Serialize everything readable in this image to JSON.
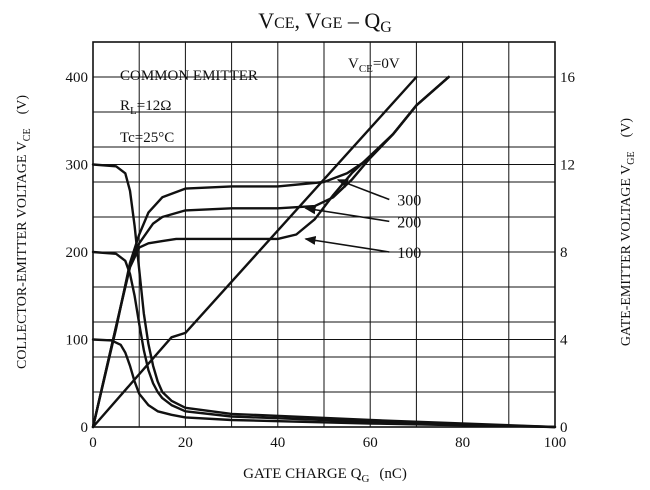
{
  "chart_data": {
    "type": "line",
    "title": {
      "main": "V",
      "sub1": "CE",
      "mid": ", V",
      "sub2": "GE",
      "dash": " – Q",
      "sub3": "G"
    },
    "xlabel": {
      "main": "GATE CHARGE  Q",
      "sub": "G",
      "unit": "(nC)"
    },
    "ylabel_left": {
      "main": "COLLECTOR-EMITTER VOLTAGE  V",
      "sub": "CE",
      "unit": "(V)"
    },
    "ylabel_right": {
      "main": "GATE-EMITTER VOLTAGE  V",
      "sub": "GE",
      "unit": "(V)"
    },
    "xlim": [
      0,
      100
    ],
    "ylim_left": [
      0,
      440
    ],
    "ylim_right": [
      0,
      17.6
    ],
    "x_ticks": [
      "0",
      "20",
      "40",
      "60",
      "80",
      "100"
    ],
    "y_left_ticks": [
      "0",
      "100",
      "200",
      "300",
      "400"
    ],
    "y_right_ticks": [
      "0",
      "4",
      "8",
      "12",
      "16"
    ],
    "annotations": {
      "line1": "COMMON EMITTER",
      "rl_main": "R",
      "rl_sub": "L",
      "rl_val": "=12Ω",
      "tc": "Tc=25°C",
      "vce_main": "V",
      "vce_sub": "CE",
      "vce_val": "=0V"
    },
    "grid": true,
    "series": [
      {
        "name": "300",
        "axis": "left",
        "x": [
          0,
          5,
          7,
          8,
          9,
          10,
          11,
          12,
          13,
          14,
          15,
          17,
          20,
          30,
          60,
          100
        ],
        "y": [
          300,
          298,
          290,
          270,
          230,
          180,
          130,
          95,
          70,
          52,
          40,
          30,
          22,
          15,
          8,
          0
        ]
      },
      {
        "name": "200",
        "axis": "left",
        "x": [
          0,
          5,
          7,
          8,
          9,
          10,
          11,
          12,
          13,
          14,
          15,
          17,
          20,
          30,
          60,
          100
        ],
        "y": [
          200,
          198,
          190,
          175,
          150,
          118,
          88,
          65,
          50,
          40,
          33,
          25,
          18,
          12,
          6,
          0
        ]
      },
      {
        "name": "100",
        "axis": "left",
        "x": [
          0,
          4,
          6,
          7,
          8,
          9,
          10,
          12,
          14,
          17,
          20,
          30,
          60,
          100
        ],
        "y": [
          100,
          99,
          94,
          85,
          70,
          52,
          38,
          25,
          18,
          14,
          11,
          8,
          4,
          0
        ]
      },
      {
        "name": "300",
        "axis": "right",
        "x": [
          0,
          5,
          8,
          10,
          12,
          15,
          20,
          30,
          40,
          50,
          55,
          60,
          65,
          70,
          77
        ],
        "y": [
          0,
          4.5,
          7.5,
          8.8,
          9.8,
          10.5,
          10.9,
          11.0,
          11.0,
          11.2,
          11.6,
          12.3,
          13.4,
          14.7,
          16
        ]
      },
      {
        "name": "200",
        "axis": "right",
        "x": [
          0,
          5,
          8,
          10,
          13,
          15,
          20,
          30,
          40,
          48,
          52,
          56,
          60,
          65,
          70,
          77
        ],
        "y": [
          0,
          4.6,
          7.4,
          8.4,
          9.3,
          9.6,
          9.9,
          10.0,
          10.0,
          10.1,
          10.5,
          11.3,
          12.3,
          13.4,
          14.7,
          16
        ]
      },
      {
        "name": "100",
        "axis": "right",
        "x": [
          0,
          5,
          8,
          10,
          12,
          15,
          18,
          20,
          30,
          40,
          44,
          48,
          52,
          56,
          60,
          65,
          70,
          77
        ],
        "y": [
          0,
          4.6,
          7.3,
          8.2,
          8.4,
          8.5,
          8.6,
          8.6,
          8.6,
          8.6,
          8.8,
          9.5,
          10.6,
          11.6,
          12.4,
          13.4,
          14.7,
          16
        ]
      },
      {
        "name": "V_CE=0V",
        "axis": "right",
        "x": [
          0,
          17,
          20,
          70
        ],
        "y": [
          0,
          4.1,
          4.3,
          16
        ]
      }
    ],
    "callouts": [
      {
        "label": "300",
        "point": [
          53,
          11.3
        ],
        "text_at": [
          65,
          10.4
        ]
      },
      {
        "label": "200",
        "point": [
          46,
          10.0
        ],
        "text_at": [
          65,
          9.4
        ]
      },
      {
        "label": "100",
        "point": [
          46,
          8.6
        ],
        "text_at": [
          65,
          8.0
        ]
      }
    ]
  }
}
